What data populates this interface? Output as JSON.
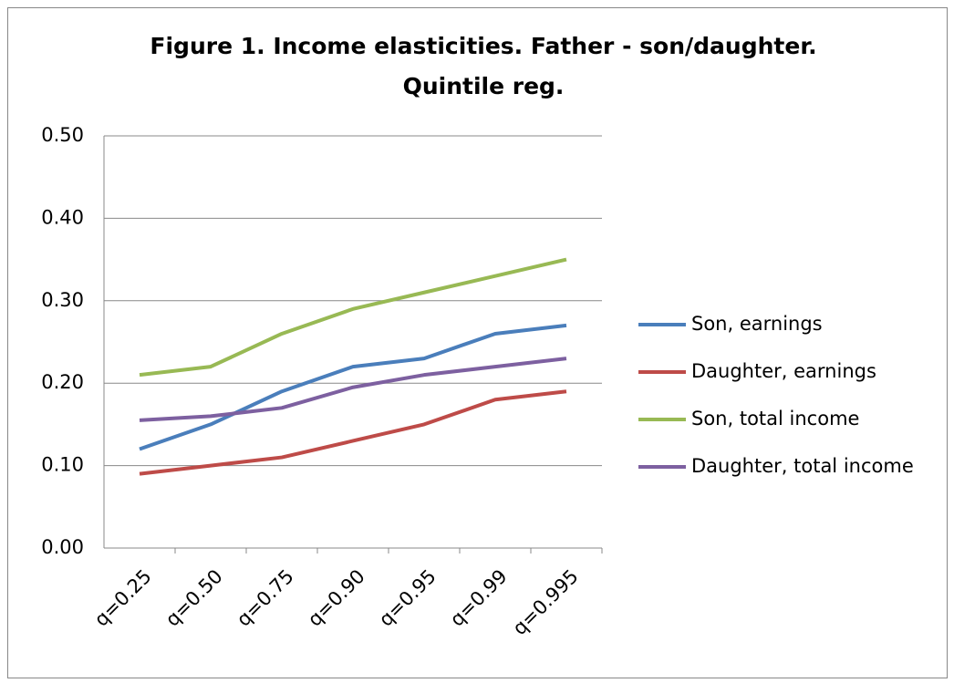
{
  "chart_data": {
    "type": "line",
    "title": [
      "Figure 1. Income elasticities. Father - son/daughter.",
      "Quintile reg."
    ],
    "categories": [
      "q=0.25",
      "q=0.50",
      "q=0.75",
      "q=0.90",
      "q=0.95",
      "q=0.99",
      "q=0.995"
    ],
    "series": [
      {
        "name": "Son, earnings",
        "color": "#4a7ebb",
        "values": [
          0.12,
          0.15,
          0.19,
          0.22,
          0.23,
          0.26,
          0.27
        ]
      },
      {
        "name": "Daughter, earnings",
        "color": "#be4b48",
        "values": [
          0.09,
          0.1,
          0.11,
          0.13,
          0.15,
          0.18,
          0.19
        ]
      },
      {
        "name": "Son, total income",
        "color": "#98b954",
        "values": [
          0.21,
          0.22,
          0.26,
          0.29,
          0.31,
          0.33,
          0.35
        ]
      },
      {
        "name": "Daughter, total income",
        "color": "#7d60a0",
        "values": [
          0.155,
          0.16,
          0.17,
          0.195,
          0.21,
          0.22,
          0.23
        ]
      }
    ],
    "ylim": [
      0,
      0.5
    ],
    "yticks": [
      {
        "value": 0,
        "label": "0.00"
      },
      {
        "value": 0.1,
        "label": "0.10"
      },
      {
        "value": 0.2,
        "label": "0.20"
      },
      {
        "value": 0.3,
        "label": "0.30"
      },
      {
        "value": 0.4,
        "label": "0.40"
      },
      {
        "value": 0.5,
        "label": "0.50"
      }
    ],
    "grid": true,
    "legend": "right"
  }
}
